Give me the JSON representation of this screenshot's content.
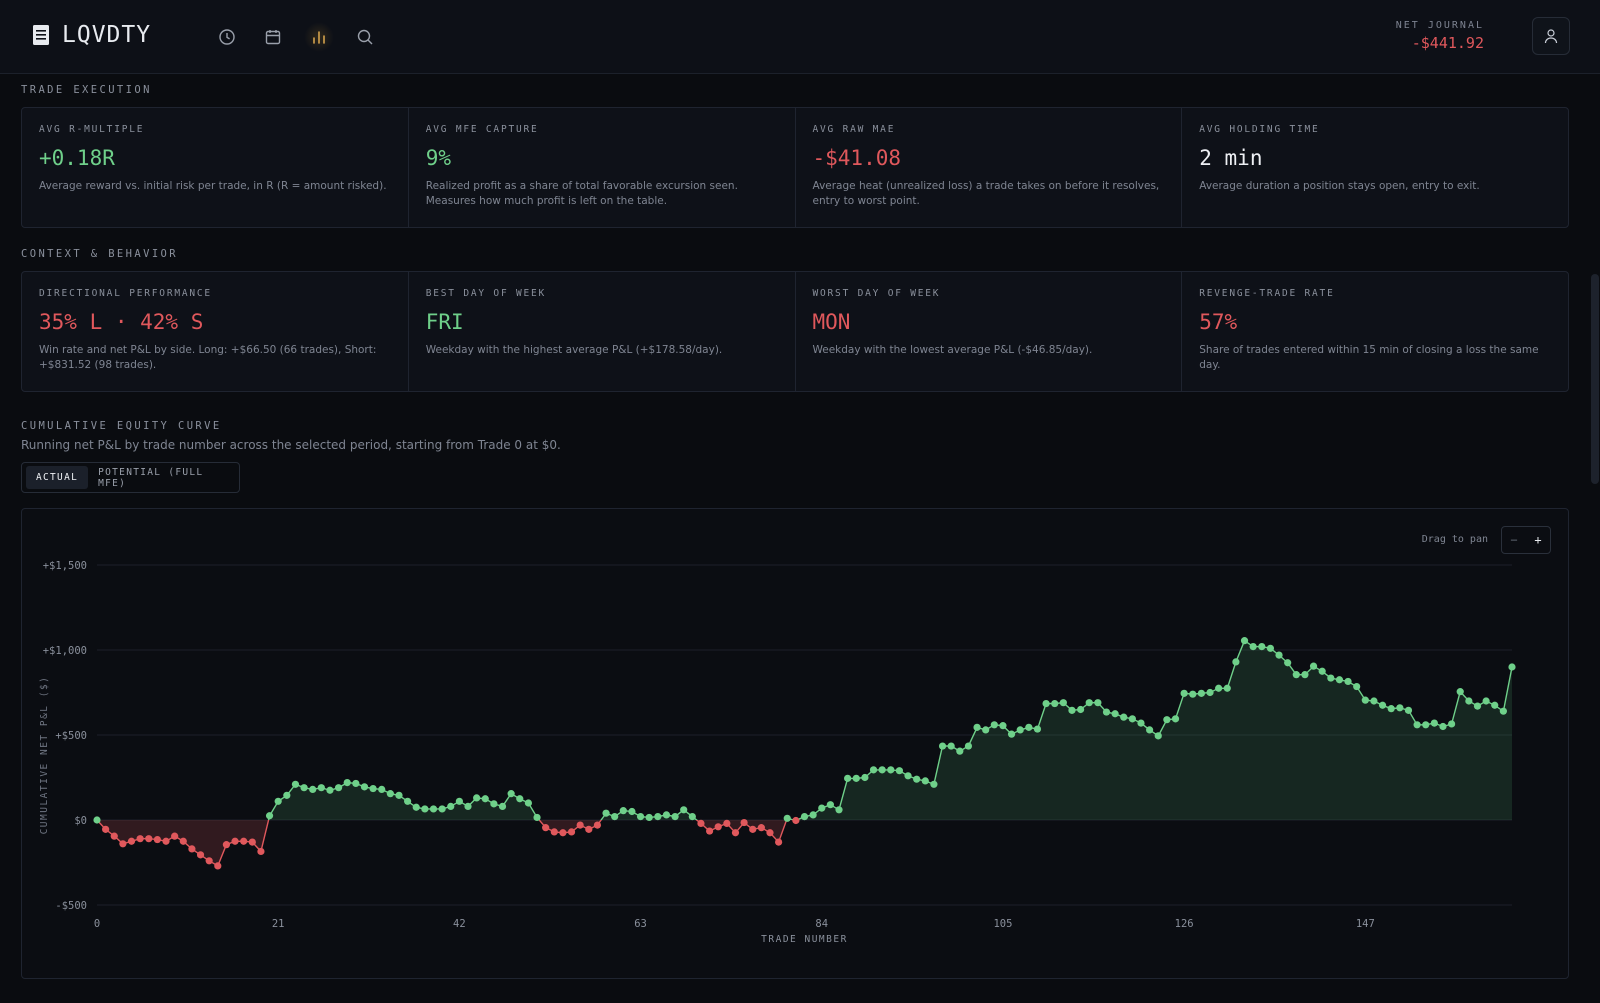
{
  "header": {
    "brand": "LQVDTY",
    "nav": [
      {
        "name": "history",
        "icon": "clock-icon"
      },
      {
        "name": "calendar",
        "icon": "calendar-icon"
      },
      {
        "name": "analytics",
        "icon": "bar-chart-icon",
        "active": true
      },
      {
        "name": "search",
        "icon": "search-icon"
      }
    ],
    "net_journal_label": "NET JOURNAL",
    "net_journal_value": "-$441.92"
  },
  "trade_execution": {
    "title": "TRADE EXECUTION",
    "metrics": [
      {
        "label": "AVG R-MULTIPLE",
        "value": "+0.18R",
        "desc": "Average reward vs. initial risk per trade, in R (R = amount risked).",
        "tone": "green"
      },
      {
        "label": "AVG MFE CAPTURE",
        "value": "9%",
        "desc": "Realized profit as a share of total favorable excursion seen. Measures how much profit is left on the table.",
        "tone": "green"
      },
      {
        "label": "AVG RAW MAE",
        "value": "-$41.08",
        "desc": "Average heat (unrealized loss) a trade takes on before it resolves, entry to worst point.",
        "tone": "red"
      },
      {
        "label": "AVG HOLDING TIME",
        "value": "2 min",
        "desc": "Average duration a position stays open, entry to exit.",
        "tone": "white"
      }
    ]
  },
  "context": {
    "title": "CONTEXT & BEHAVIOR",
    "metrics": [
      {
        "label": "DIRECTIONAL PERFORMANCE",
        "value": "35% L · 42% S",
        "desc": "Win rate and net P&L by side. Long: +$66.50 (66 trades), Short: +$831.52 (98 trades).",
        "tone": "red"
      },
      {
        "label": "BEST DAY OF WEEK",
        "value": "FRI",
        "desc": "Weekday with the highest average P&L (+$178.58/day).",
        "tone": "green"
      },
      {
        "label": "WORST DAY OF WEEK",
        "value": "MON",
        "desc": "Weekday with the lowest average P&L (-$46.85/day).",
        "tone": "red"
      },
      {
        "label": "REVENGE-TRADE RATE",
        "value": "57%",
        "desc": "Share of trades entered within 15 min of closing a loss the same day.",
        "tone": "red"
      }
    ]
  },
  "equity": {
    "title": "CUMULATIVE EQUITY CURVE",
    "subtitle": "Running net P&L by trade number across the selected period, starting from Trade 0 at $0.",
    "toggle": {
      "actual": "ACTUAL",
      "potential": "POTENTIAL (FULL MFE)"
    },
    "pan_hint": "Drag to pan",
    "zoom_out": "−",
    "zoom_in": "+"
  },
  "colors": {
    "positive": "#6fd08a",
    "negative": "#e0585c",
    "accent": "#d4a24c"
  },
  "chart_data": {
    "type": "area",
    "xlabel": "TRADE NUMBER",
    "ylabel": "CUMULATIVE NET P&L ($)",
    "xlim": [
      0,
      164
    ],
    "ylim": [
      -500,
      1500
    ],
    "x_ticks": [
      0,
      21,
      42,
      63,
      84,
      105,
      126,
      147
    ],
    "y_ticks": [
      1500,
      1000,
      500,
      0,
      -500
    ],
    "y_tick_labels": [
      "+$1,500",
      "+$1,000",
      "+$500",
      "$0",
      "-$500"
    ],
    "grid": true,
    "values": [
      0,
      -55,
      -95,
      -140,
      -125,
      -110,
      -110,
      -115,
      -125,
      -95,
      -125,
      -170,
      -205,
      -240,
      -270,
      -145,
      -125,
      -125,
      -130,
      -185,
      25,
      110,
      145,
      210,
      190,
      180,
      190,
      175,
      190,
      220,
      215,
      195,
      185,
      180,
      155,
      145,
      110,
      75,
      65,
      65,
      65,
      80,
      110,
      80,
      130,
      125,
      95,
      80,
      155,
      125,
      100,
      15,
      -45,
      -70,
      -75,
      -70,
      -30,
      -55,
      -30,
      40,
      20,
      55,
      50,
      20,
      15,
      20,
      30,
      20,
      60,
      20,
      -20,
      -65,
      -40,
      -20,
      -75,
      -15,
      -55,
      -45,
      -75,
      -130,
      10,
      -3,
      20,
      30,
      70,
      90,
      60,
      245,
      245,
      250,
      295,
      295,
      295,
      290,
      260,
      240,
      230,
      210,
      435,
      435,
      405,
      435,
      545,
      530,
      560,
      555,
      505,
      530,
      545,
      535,
      685,
      685,
      690,
      645,
      650,
      690,
      690,
      635,
      625,
      605,
      595,
      570,
      530,
      495,
      590,
      595,
      745,
      740,
      745,
      750,
      775,
      775,
      930,
      1055,
      1020,
      1020,
      1010,
      970,
      925,
      855,
      855,
      905,
      875,
      835,
      825,
      815,
      785,
      705,
      700,
      675,
      655,
      660,
      645,
      560,
      560,
      570,
      550,
      565,
      755,
      700,
      670,
      700,
      675,
      640,
      900
    ]
  }
}
